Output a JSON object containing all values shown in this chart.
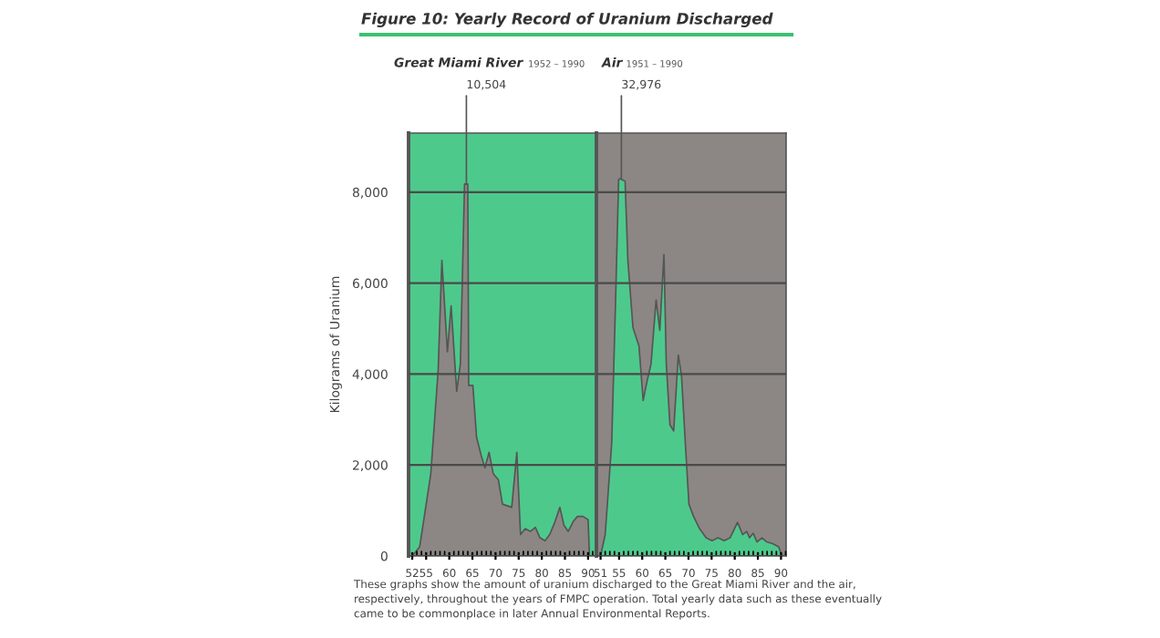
{
  "chart_data": [
    {
      "type": "area",
      "title": "Great Miami River",
      "subtitle": "1952 – 1990",
      "ylabel": "Kilograms of Uranium",
      "annotations": [
        "Figure 10: Yearly Record of Uranium Discharged",
        {
          "text": "10,504",
          "x": 63.7,
          "y": 8180
        },
        "These graphs show the amount of uranium discharged to the Great Miami River and the air,\nrespectively, throughout the years of FMPC operation. Total yearly data such as these eventually\ncame to be commonplace in later Annual Environmental Reports."
      ],
      "series": [
        {
          "color": "#8c8784",
          "x": [
            52,
            53.6,
            56,
            57.6,
            58.4,
            59.6,
            60.4,
            61.6,
            62.4,
            63.3,
            64,
            64.2,
            65.1,
            65.9,
            66.9,
            67.7,
            68.6,
            69.5,
            70.6,
            71.5,
            73.5,
            74.6,
            75.4,
            76.4,
            77.5,
            78.6,
            79.6,
            80.7,
            81.7,
            82.8,
            83.9,
            84.8,
            85.7,
            86.8,
            87.7,
            88.9,
            90,
            90.3
          ],
          "values": [
            0,
            200,
            1800,
            4090,
            6500,
            4490,
            5500,
            3620,
            4220,
            8180,
            8180,
            3750,
            3750,
            2610,
            2210,
            1940,
            2280,
            1810,
            1680,
            1140,
            1070,
            2280,
            470,
            600,
            540,
            630,
            400,
            335,
            470,
            740,
            1070,
            670,
            540,
            760,
            870,
            870,
            800,
            0
          ]
        }
      ],
      "xlim": [
        51.2,
        91.8
      ],
      "xticks": [
        52,
        55,
        60,
        65,
        70,
        75,
        80,
        85,
        90
      ],
      "ylim": [
        0,
        9300
      ],
      "yticks": [
        0,
        {
          "value": 2000,
          "label": "2,000"
        },
        {
          "value": 4000,
          "label": "4,000"
        },
        {
          "value": 6000,
          "label": "6,000"
        },
        {
          "value": 8000,
          "label": "8,000"
        }
      ],
      "grid": "y"
    },
    {
      "type": "area",
      "title": "Air",
      "subtitle": "1951 – 1990",
      "annotations": [
        {
          "text": "32,976",
          "x": 55.5,
          "y": 8290
        }
      ],
      "series": [
        {
          "color": "#4ec98c",
          "x": [
            51,
            52,
            53.4,
            54.3,
            54.9,
            55.2,
            56.3,
            56.9,
            58,
            59.3,
            60.2,
            61,
            61.9,
            63,
            63.8,
            64.7,
            65.2,
            66,
            66.8,
            67.8,
            68.5,
            69.4,
            70.1,
            71.1,
            72.4,
            73.8,
            75.1,
            76.4,
            77.7,
            79,
            80.6,
            81.7,
            82.6,
            83.2,
            84,
            84.8,
            85.9,
            86.9,
            88.2,
            89.5,
            90.2
          ],
          "values": [
            0,
            470,
            2480,
            5830,
            8270,
            8300,
            8240,
            6500,
            5020,
            4620,
            3420,
            3820,
            4220,
            5630,
            4960,
            6630,
            4220,
            2880,
            2750,
            4420,
            3950,
            2340,
            1140,
            870,
            600,
            400,
            335,
            400,
            335,
            400,
            740,
            470,
            540,
            400,
            500,
            310,
            400,
            310,
            270,
            200,
            0
          ]
        }
      ],
      "xlim": [
        50.1,
        91.1
      ],
      "xticks": [
        51,
        55,
        60,
        65,
        70,
        75,
        80,
        85,
        90
      ],
      "ylim": [
        0,
        9300
      ],
      "yticks": [
        0,
        2000,
        4000,
        6000,
        8000
      ],
      "grid": "y",
      "tick_labels": "x"
    }
  ]
}
